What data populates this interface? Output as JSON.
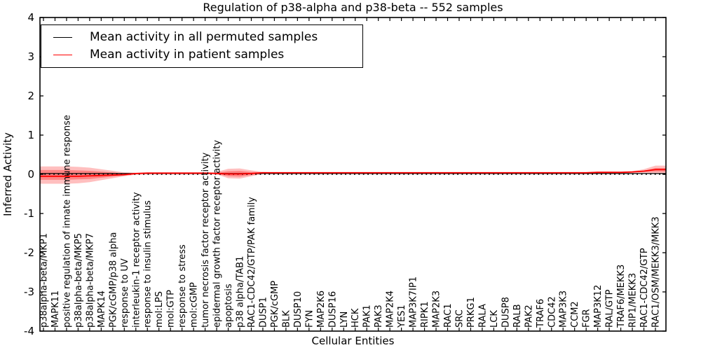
{
  "figure": {
    "title": "Regulation of p38-alpha and p38-beta -- 552 samples"
  },
  "legend": {
    "items": [
      {
        "label": "Mean activity in all permuted samples",
        "color": "#000000"
      },
      {
        "label": "Mean activity in patient samples",
        "color": "#ff0000"
      }
    ]
  },
  "chart_data": {
    "type": "line",
    "title": "Regulation of p38-alpha and p38-beta -- 552 samples",
    "xlabel": "Cellular Entities",
    "ylabel": "Inferred Activity",
    "ylim": [
      -4,
      4
    ],
    "yticks": [
      4,
      3,
      2,
      1,
      0,
      -1,
      -2,
      -3,
      -4
    ],
    "grid": false,
    "legend_position": "upper left",
    "zero_line": {
      "style": "dotted",
      "color": "#000000",
      "y": 0
    },
    "accent_color": "#ff0000",
    "categories": [
      "p38alpha-beta/MKP1",
      "MAPK11",
      "positive regulation of innate immune response",
      "p38alpha-beta/MKP5",
      "p38alpha-beta/MKP7",
      "MAPK14",
      "PGK/cGMP/p38 alpha",
      "response to UV",
      "interleukin-1 receptor activity",
      "response to insulin stimulus",
      "mol:LPS",
      "mol:GTP",
      "response to stress",
      "mol:cGMP",
      "tumor necrosis factor receptor activity",
      "epidermal growth factor receptor activity",
      "apoptosis",
      "p38 alpha/TAB1",
      "RAC1-CDC42/GTP/PAK family",
      "DUSP1",
      "PGK/cGMP",
      "BLK",
      "DUSP10",
      "FYN",
      "MAP2K6",
      "DUSP16",
      "LYN",
      "HCK",
      "PAK1",
      "PAK3",
      "MAP2K4",
      "YES1",
      "MAP3K7IP1",
      "RIPK1",
      "MAP2K3",
      "RAC1",
      "SRC",
      "PRKG1",
      "RALA",
      "LCK",
      "DUSP8",
      "RALB",
      "PAK2",
      "TRAF6",
      "CDC42",
      "MAP3K3",
      "CCM2",
      "FGR",
      "MAP3K12",
      "RAL/GTP",
      "TRAF6/MEKK3",
      "RIP1/MEKK3",
      "RAC1-CDC42/GTP",
      "RAC1/OSM/MEKK3/MKK3"
    ],
    "series": [
      {
        "name": "Mean activity in all permuted samples",
        "color": "#000000",
        "width": 1.3,
        "values": [
          0.02,
          0.02,
          0.02,
          0.02,
          0.02,
          0.02,
          0.02,
          0.02,
          0.02,
          0.02,
          0.02,
          0.02,
          0.02,
          0.02,
          0.02,
          0.02,
          0.02,
          0.02,
          0.02,
          0.02,
          0.02,
          0.02,
          0.02,
          0.02,
          0.02,
          0.02,
          0.02,
          0.02,
          0.02,
          0.02,
          0.02,
          0.02,
          0.02,
          0.02,
          0.02,
          0.02,
          0.02,
          0.02,
          0.02,
          0.02,
          0.02,
          0.02,
          0.02,
          0.02,
          0.02,
          0.02,
          0.02,
          0.02,
          0.02,
          0.02,
          0.02,
          0.02,
          0.02,
          0.02
        ]
      },
      {
        "name": "Mean activity in patient samples",
        "color": "#ff0000",
        "width": 1.8,
        "values": [
          -0.05,
          -0.05,
          -0.05,
          -0.05,
          -0.04,
          -0.03,
          -0.02,
          -0.01,
          0.02,
          0.03,
          0.03,
          0.03,
          0.03,
          0.03,
          0.03,
          0.02,
          0.01,
          0.01,
          0.02,
          0.04,
          0.04,
          0.04,
          0.04,
          0.04,
          0.04,
          0.04,
          0.04,
          0.04,
          0.04,
          0.04,
          0.04,
          0.04,
          0.04,
          0.04,
          0.04,
          0.04,
          0.04,
          0.04,
          0.04,
          0.04,
          0.04,
          0.04,
          0.04,
          0.04,
          0.04,
          0.04,
          0.04,
          0.04,
          0.05,
          0.05,
          0.05,
          0.06,
          0.08,
          0.12
        ]
      }
    ],
    "bands": [
      {
        "name": "patient-band-outer",
        "color": "#ff0000",
        "opacity": 0.25,
        "upper": [
          0.2,
          0.2,
          0.2,
          0.19,
          0.17,
          0.13,
          0.09,
          0.05,
          0.04,
          0.05,
          0.05,
          0.05,
          0.05,
          0.05,
          0.05,
          0.06,
          0.14,
          0.15,
          0.1,
          0.06,
          0.05,
          0.05,
          0.05,
          0.05,
          0.05,
          0.05,
          0.05,
          0.05,
          0.05,
          0.05,
          0.05,
          0.05,
          0.05,
          0.05,
          0.05,
          0.05,
          0.05,
          0.05,
          0.05,
          0.05,
          0.05,
          0.05,
          0.05,
          0.05,
          0.05,
          0.05,
          0.05,
          0.05,
          0.07,
          0.07,
          0.06,
          0.08,
          0.13,
          0.22
        ],
        "lower": [
          -0.24,
          -0.24,
          -0.24,
          -0.23,
          -0.2,
          -0.15,
          -0.1,
          -0.05,
          -0.01,
          0.0,
          0.0,
          0.0,
          0.0,
          0.0,
          0.0,
          0.0,
          -0.1,
          -0.11,
          -0.05,
          0.01,
          0.02,
          0.02,
          0.02,
          0.02,
          0.02,
          0.02,
          0.02,
          0.02,
          0.02,
          0.02,
          0.02,
          0.02,
          0.02,
          0.02,
          0.02,
          0.02,
          0.02,
          0.02,
          0.02,
          0.02,
          0.02,
          0.02,
          0.02,
          0.02,
          0.02,
          0.02,
          0.02,
          0.02,
          0.02,
          0.02,
          0.03,
          0.04,
          0.04,
          0.03
        ]
      },
      {
        "name": "patient-band-inner",
        "color": "#ff0000",
        "opacity": 0.3,
        "upper": [
          0.11,
          0.11,
          0.11,
          0.1,
          0.09,
          0.07,
          0.05,
          0.02,
          0.03,
          0.04,
          0.04,
          0.04,
          0.04,
          0.04,
          0.04,
          0.04,
          0.08,
          0.09,
          0.06,
          0.05,
          0.04,
          0.04,
          0.04,
          0.04,
          0.04,
          0.04,
          0.04,
          0.04,
          0.04,
          0.04,
          0.04,
          0.04,
          0.04,
          0.04,
          0.04,
          0.04,
          0.04,
          0.04,
          0.04,
          0.04,
          0.04,
          0.04,
          0.04,
          0.04,
          0.04,
          0.04,
          0.04,
          0.04,
          0.05,
          0.05,
          0.05,
          0.06,
          0.09,
          0.16
        ],
        "lower": [
          -0.14,
          -0.14,
          -0.14,
          -0.13,
          -0.12,
          -0.09,
          -0.06,
          -0.03,
          0.0,
          0.01,
          0.01,
          0.01,
          0.01,
          0.01,
          0.01,
          0.01,
          -0.05,
          -0.06,
          -0.02,
          0.02,
          0.02,
          0.02,
          0.02,
          0.02,
          0.02,
          0.02,
          0.02,
          0.02,
          0.02,
          0.02,
          0.02,
          0.02,
          0.02,
          0.02,
          0.02,
          0.02,
          0.02,
          0.02,
          0.02,
          0.02,
          0.02,
          0.02,
          0.02,
          0.02,
          0.02,
          0.02,
          0.02,
          0.02,
          0.03,
          0.03,
          0.03,
          0.04,
          0.06,
          0.07
        ]
      }
    ]
  }
}
